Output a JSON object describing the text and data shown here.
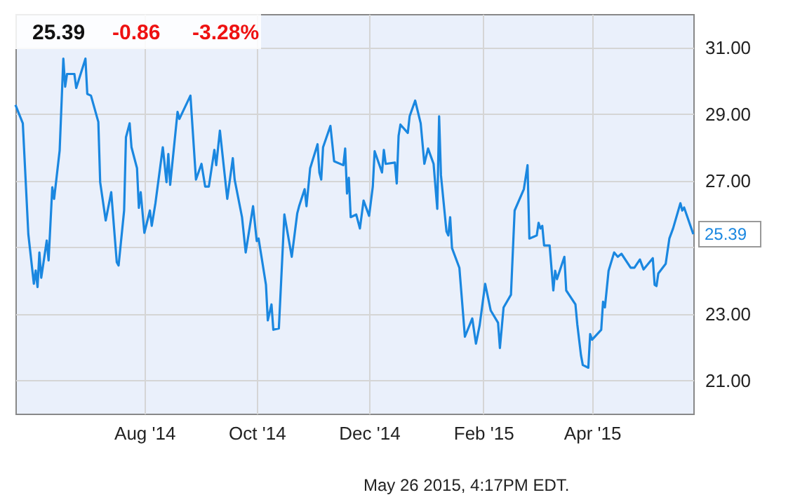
{
  "chart_data": {
    "type": "line",
    "annotations": [
      "25.39",
      "-0.86",
      "-3.28%",
      "May 26 2015, 4:17PM EDT.",
      {
        "text": "25.39",
        "x": "2015-05-26",
        "y": 25.39
      }
    ],
    "x": [
      "2014-05-23",
      "2014-05-27",
      "2014-05-30",
      "2014-06-02",
      "2014-06-03",
      "2014-06-04",
      "2014-06-05",
      "2014-06-06",
      "2014-06-09",
      "2014-06-10",
      "2014-06-12",
      "2014-06-13",
      "2014-06-16",
      "2014-06-18",
      "2014-06-19",
      "2014-06-20",
      "2014-06-24",
      "2014-06-25",
      "2014-06-30",
      "2014-07-01",
      "2014-07-03",
      "2014-07-07",
      "2014-07-08",
      "2014-07-11",
      "2014-07-14",
      "2014-07-17",
      "2014-07-18",
      "2014-07-21",
      "2014-07-22",
      "2014-07-24",
      "2014-07-25",
      "2014-07-28",
      "2014-07-29",
      "2014-07-30",
      "2014-08-01",
      "2014-08-04",
      "2014-08-05",
      "2014-08-07",
      "2014-08-11",
      "2014-08-13",
      "2014-08-14",
      "2014-08-15",
      "2014-08-19",
      "2014-08-20",
      "2014-08-26",
      "2014-08-29",
      "2014-09-01",
      "2014-09-03",
      "2014-09-05",
      "2014-09-08",
      "2014-09-09",
      "2014-09-11",
      "2014-09-15",
      "2014-09-18",
      "2014-09-19",
      "2014-09-23",
      "2014-09-25",
      "2014-09-29",
      "2014-10-01",
      "2014-10-02",
      "2014-10-06",
      "2014-10-07",
      "2014-10-09",
      "2014-10-10",
      "2014-10-13",
      "2014-10-16",
      "2014-10-20",
      "2014-10-23",
      "2014-10-24",
      "2014-10-27",
      "2014-10-28",
      "2014-10-30",
      "2014-11-03",
      "2014-11-04",
      "2014-11-05",
      "2014-11-06",
      "2014-11-10",
      "2014-11-12",
      "2014-11-17",
      "2014-11-18",
      "2014-11-19",
      "2014-11-20",
      "2014-11-21",
      "2014-11-24",
      "2014-11-26",
      "2014-11-28",
      "2014-12-01",
      "2014-12-03",
      "2014-12-04",
      "2014-12-08",
      "2014-12-09",
      "2014-12-10",
      "2014-12-15",
      "2014-12-16",
      "2014-12-17",
      "2014-12-18",
      "2014-12-22",
      "2014-12-23",
      "2014-12-26",
      "2014-12-29",
      "2014-12-31",
      "2015-01-02",
      "2015-01-05",
      "2015-01-07",
      "2015-01-08",
      "2015-01-09",
      "2015-01-12",
      "2015-01-13",
      "2015-01-14",
      "2015-01-15",
      "2015-01-19",
      "2015-01-22",
      "2015-01-26",
      "2015-01-28",
      "2015-01-30",
      "2015-02-02",
      "2015-02-05",
      "2015-02-09",
      "2015-02-10",
      "2015-02-12",
      "2015-02-16",
      "2015-02-18",
      "2015-02-23",
      "2015-02-25",
      "2015-02-26",
      "2015-03-02",
      "2015-03-03",
      "2015-03-04",
      "2015-03-05",
      "2015-03-06",
      "2015-03-09",
      "2015-03-11",
      "2015-03-12",
      "2015-03-13",
      "2015-03-17",
      "2015-03-18",
      "2015-03-23",
      "2015-03-24",
      "2015-03-26",
      "2015-03-27",
      "2015-03-30",
      "2015-03-31",
      "2015-04-01",
      "2015-04-06",
      "2015-04-07",
      "2015-04-08",
      "2015-04-10",
      "2015-04-13",
      "2015-04-15",
      "2015-04-17",
      "2015-04-22",
      "2015-04-24",
      "2015-04-27",
      "2015-04-29",
      "2015-05-04",
      "2015-05-05",
      "2015-05-06",
      "2015-05-07",
      "2015-05-11",
      "2015-05-13",
      "2015-05-15",
      "2015-05-19",
      "2015-05-20",
      "2015-05-21",
      "2015-05-26"
    ],
    "series": [
      {
        "color": "#1a87e0",
        "values": [
          29.27,
          28.72,
          25.39,
          23.9,
          24.3,
          23.8,
          24.84,
          24.08,
          25.2,
          24.6,
          26.8,
          26.45,
          27.9,
          30.66,
          29.82,
          30.2,
          30.2,
          29.78,
          30.66,
          29.6,
          29.55,
          28.76,
          26.95,
          25.8,
          26.65,
          24.55,
          24.45,
          26.1,
          28.3,
          28.72,
          28.0,
          27.37,
          26.18,
          26.65,
          25.43,
          26.1,
          25.64,
          26.32,
          28.0,
          26.95,
          27.8,
          26.87,
          29.06,
          28.85,
          29.55,
          27.03,
          27.5,
          26.82,
          26.82,
          27.92,
          27.46,
          28.5,
          26.45,
          27.67,
          27.03,
          25.9,
          24.84,
          26.23,
          25.18,
          25.26,
          23.87,
          22.8,
          23.28,
          22.52,
          22.56,
          25.98,
          24.71,
          26.02,
          26.23,
          26.74,
          26.23,
          27.37,
          28.09,
          27.24,
          27.03,
          28.0,
          28.64,
          27.58,
          27.46,
          27.96,
          26.61,
          27.08,
          25.9,
          25.98,
          25.56,
          26.4,
          25.94,
          26.82,
          27.88,
          27.24,
          27.92,
          27.5,
          27.54,
          26.91,
          28.34,
          28.68,
          28.43,
          28.93,
          29.4,
          28.72,
          27.5,
          27.96,
          27.5,
          26.15,
          28.93,
          27.16,
          25.47,
          25.35,
          25.9,
          24.97,
          24.38,
          22.31,
          22.86,
          22.1,
          22.65,
          23.9,
          23.1,
          22.73,
          21.97,
          23.19,
          23.57,
          26.1,
          26.74,
          27.46,
          25.26,
          25.35,
          25.73,
          25.56,
          25.64,
          25.05,
          25.05,
          23.7,
          24.29,
          24.04,
          24.71,
          23.7,
          23.28,
          22.69,
          21.76,
          21.46,
          21.38,
          22.39,
          22.22,
          22.52,
          23.36,
          23.19,
          24.29,
          24.84,
          24.71,
          24.8,
          24.38,
          24.38,
          24.63,
          24.33,
          24.67,
          23.87,
          23.83,
          24.21,
          24.5,
          25.26,
          25.56,
          26.32,
          26.1,
          26.19,
          25.39
        ]
      }
    ],
    "xlim": [
      "2014-05-23",
      "2015-05-26"
    ],
    "xticks": [
      {
        "value": "2014-08-01",
        "label": "Aug '14"
      },
      {
        "value": "2014-10-01",
        "label": "Oct '14"
      },
      {
        "value": "2014-12-01",
        "label": "Dec '14"
      },
      {
        "value": "2015-02-01",
        "label": "Feb '15"
      },
      {
        "value": "2015-04-01",
        "label": "Apr '15"
      }
    ],
    "ylim": [
      20,
      32
    ],
    "yticks": [
      {
        "value": 21,
        "label": "21.00"
      },
      {
        "value": 23,
        "label": "23.00"
      },
      {
        "value": 25,
        "label": null
      },
      {
        "value": 27,
        "label": "27.00"
      },
      {
        "value": 29,
        "label": "29.00"
      },
      {
        "value": 31,
        "label": "31.00"
      }
    ],
    "grid": true,
    "marker": "none",
    "line_style": "solid"
  }
}
